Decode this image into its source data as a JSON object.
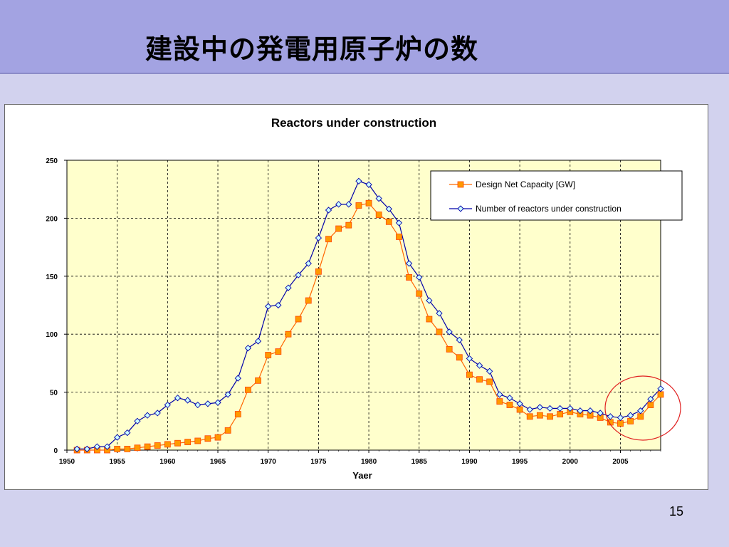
{
  "slide": {
    "title": "建設中の発電用原子炉の数",
    "page_number": "15",
    "colors": {
      "title_bar": "#a3a3e2",
      "background": "#d2d2ee",
      "plot_area": "#ffffcc",
      "highlight_circle": "#e02020"
    }
  },
  "chart_data": {
    "type": "line",
    "title": "Reactors under construction",
    "xlabel": "Yaer",
    "ylabel": "",
    "xlim": [
      1950,
      2009
    ],
    "ylim": [
      0,
      250
    ],
    "x_ticks": [
      "1950",
      "1955",
      "1960",
      "1965",
      "1970",
      "1975",
      "1980",
      "1985",
      "1990",
      "1995",
      "2000",
      "2005"
    ],
    "y_ticks": [
      "0",
      "50",
      "100",
      "150",
      "200",
      "250"
    ],
    "grid": true,
    "legend_position": "top-right",
    "annotation": "red circle around 2004–2009 (recent increase)",
    "x": [
      1951,
      1952,
      1953,
      1954,
      1955,
      1956,
      1957,
      1958,
      1959,
      1960,
      1961,
      1962,
      1963,
      1964,
      1965,
      1966,
      1967,
      1968,
      1969,
      1970,
      1971,
      1972,
      1973,
      1974,
      1975,
      1976,
      1977,
      1978,
      1979,
      1980,
      1981,
      1982,
      1983,
      1984,
      1985,
      1986,
      1987,
      1988,
      1989,
      1990,
      1991,
      1992,
      1993,
      1994,
      1995,
      1996,
      1997,
      1998,
      1999,
      2000,
      2001,
      2002,
      2003,
      2004,
      2005,
      2006,
      2007,
      2008,
      2009
    ],
    "series": [
      {
        "name": "Design Net Capacity [GW]",
        "color": "#ff6600",
        "fill": "#ff9900",
        "marker": "square",
        "values": [
          0,
          0,
          0,
          0,
          1,
          1,
          2,
          3,
          4,
          5,
          6,
          7,
          8,
          10,
          11,
          17,
          31,
          52,
          60,
          82,
          85,
          100,
          113,
          129,
          154,
          182,
          191,
          194,
          211,
          213,
          203,
          197,
          184,
          149,
          135,
          113,
          102,
          87,
          80,
          65,
          61,
          59,
          42,
          39,
          35,
          29,
          30,
          29,
          31,
          33,
          31,
          30,
          28,
          24,
          23,
          25,
          29,
          39,
          48
        ]
      },
      {
        "name": "Number of reactors under construction",
        "color": "#0000aa",
        "fill": "#ccffff",
        "marker": "diamond",
        "values": [
          1,
          1,
          3,
          3,
          11,
          15,
          25,
          30,
          32,
          39,
          45,
          43,
          39,
          40,
          41,
          48,
          62,
          88,
          94,
          124,
          125,
          140,
          151,
          161,
          183,
          207,
          212,
          212,
          232,
          229,
          217,
          208,
          196,
          161,
          149,
          129,
          118,
          102,
          95,
          79,
          73,
          68,
          48,
          45,
          40,
          35,
          37,
          36,
          36,
          36,
          34,
          34,
          32,
          29,
          28,
          30,
          34,
          44,
          53
        ]
      }
    ]
  }
}
